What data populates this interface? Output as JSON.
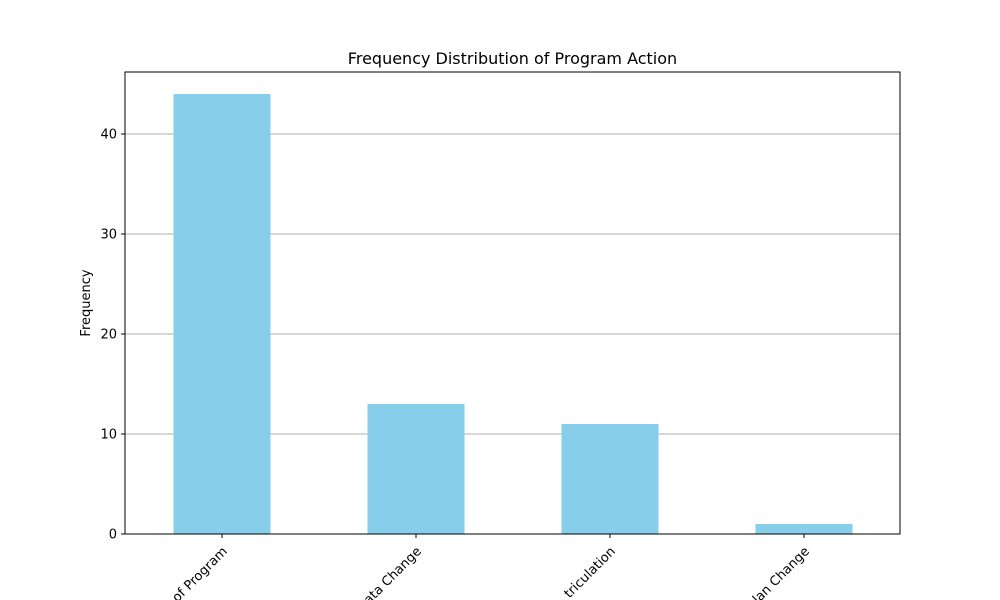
{
  "chart_data": {
    "type": "bar",
    "title": "Frequency Distribution of Program Action",
    "xlabel": "",
    "ylabel": "Frequency",
    "categories": [
      "Completion of Program",
      "Data Change",
      "Matriculation",
      "Plan Change"
    ],
    "categories_visible": [
      "of Program",
      "ata Change",
      "triculation",
      "lan Change"
    ],
    "values": [
      44,
      13,
      11,
      1
    ],
    "ylim": [
      0,
      46.2
    ],
    "yticks": [
      0,
      10,
      20,
      30,
      40
    ],
    "grid": "y",
    "bar_color": "#87CEEB",
    "grid_color": "#b0b0b0"
  }
}
